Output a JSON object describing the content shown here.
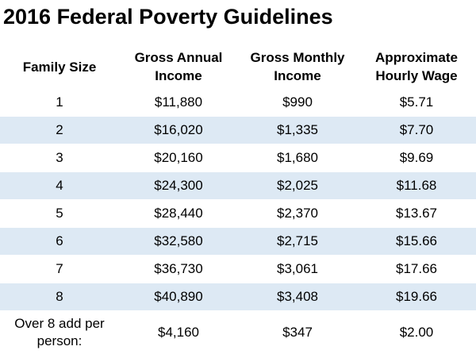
{
  "title": "2016 Federal Poverty Guidelines",
  "colors": {
    "row_shading": "#dde9f4",
    "background": "#ffffff"
  },
  "columns": [
    {
      "label": "Family Size"
    },
    {
      "label": "Gross Annual Income"
    },
    {
      "label": "Gross Monthly Income"
    },
    {
      "label": "Approximate Hourly Wage"
    }
  ],
  "rows": [
    {
      "family_size": "1",
      "annual": "$11,880",
      "monthly": "$990",
      "hourly": "$5.71"
    },
    {
      "family_size": "2",
      "annual": "$16,020",
      "monthly": "$1,335",
      "hourly": "$7.70"
    },
    {
      "family_size": "3",
      "annual": "$20,160",
      "monthly": "$1,680",
      "hourly": "$9.69"
    },
    {
      "family_size": "4",
      "annual": "$24,300",
      "monthly": "$2,025",
      "hourly": "$11.68"
    },
    {
      "family_size": "5",
      "annual": "$28,440",
      "monthly": "$2,370",
      "hourly": "$13.67"
    },
    {
      "family_size": "6",
      "annual": "$32,580",
      "monthly": "$2,715",
      "hourly": "$15.66"
    },
    {
      "family_size": "7",
      "annual": "$36,730",
      "monthly": "$3,061",
      "hourly": "$17.66"
    },
    {
      "family_size": "8",
      "annual": "$40,890",
      "monthly": "$3,408",
      "hourly": "$19.66"
    }
  ],
  "footer": {
    "label": "Over 8 add per person:",
    "annual": "$4,160",
    "monthly": "$347",
    "hourly": "$2.00"
  }
}
